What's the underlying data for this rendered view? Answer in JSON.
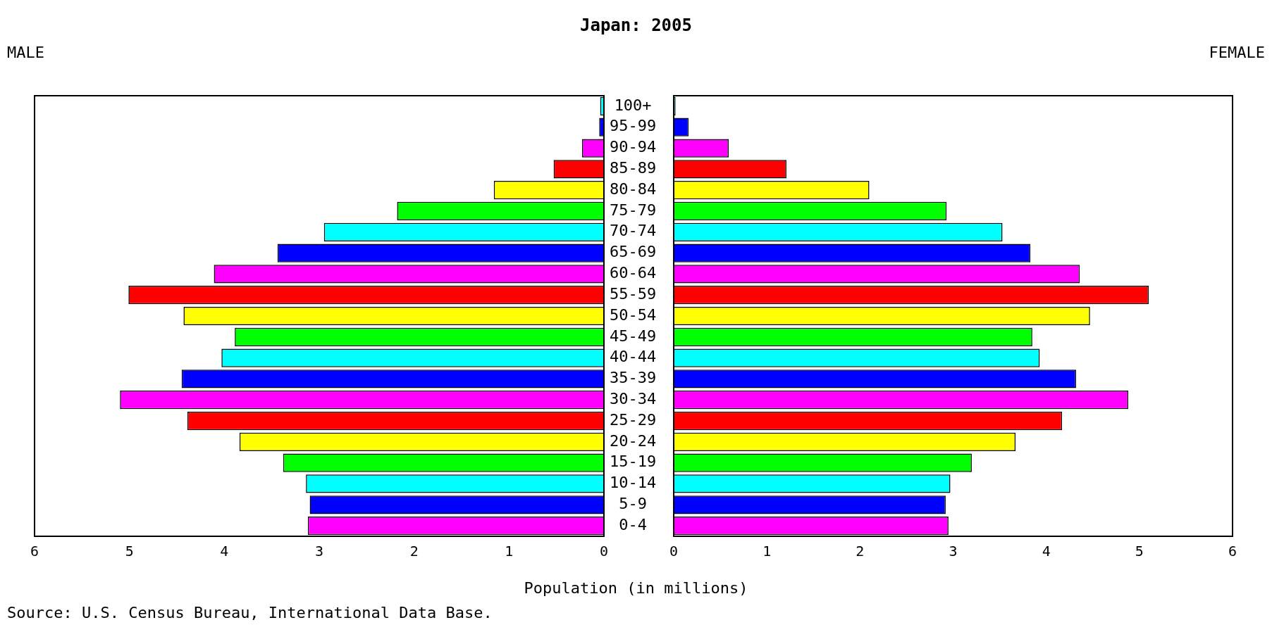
{
  "chart_data": [
    {
      "type": "bar",
      "orientation": "horizontal",
      "title": "Japan: 2005",
      "subtitle": "MALE",
      "xlabel": "Population (in millions)",
      "annotations": [
        "Source: U.S. Census Bureau, International Data Base."
      ],
      "categories": [
        "100+",
        "95-99",
        "90-94",
        "85-89",
        "80-84",
        "75-79",
        "70-74",
        "65-69",
        "60-64",
        "55-59",
        "50-54",
        "45-49",
        "40-44",
        "35-39",
        "30-34",
        "25-29",
        "20-24",
        "15-19",
        "10-14",
        "5-9",
        "0-4"
      ],
      "values": [
        0.04,
        0.05,
        0.23,
        0.53,
        1.16,
        2.18,
        2.95,
        3.44,
        4.11,
        5.01,
        4.43,
        3.89,
        4.03,
        4.45,
        5.1,
        4.39,
        3.84,
        3.38,
        3.14,
        3.1,
        3.12
      ],
      "colors": [
        "#00ffff",
        "#0000ff",
        "#ff00ff",
        "#ff0000",
        "#ffff00",
        "#00ff00",
        "#00ffff",
        "#0000ff",
        "#ff00ff",
        "#ff0000",
        "#ffff00",
        "#00ff00",
        "#00ffff",
        "#0000ff",
        "#ff00ff",
        "#ff0000",
        "#ffff00",
        "#00ff00",
        "#00ffff",
        "#0000ff",
        "#ff00ff"
      ],
      "xlim": [
        6,
        0
      ],
      "xticks": [
        6,
        5,
        4,
        3,
        2,
        1,
        0
      ]
    },
    {
      "type": "bar",
      "orientation": "horizontal",
      "subtitle": "FEMALE",
      "tick_labels": "x",
      "values": [
        0.02,
        0.16,
        0.59,
        1.21,
        2.1,
        2.93,
        3.53,
        3.83,
        4.36,
        5.1,
        4.47,
        3.85,
        3.93,
        4.32,
        4.88,
        4.17,
        3.67,
        3.2,
        2.97,
        2.92,
        2.95
      ],
      "colors": [
        "#00ffff",
        "#0000ff",
        "#ff00ff",
        "#ff0000",
        "#ffff00",
        "#00ff00",
        "#00ffff",
        "#0000ff",
        "#ff00ff",
        "#ff0000",
        "#ffff00",
        "#00ff00",
        "#00ffff",
        "#0000ff",
        "#ff00ff",
        "#ff0000",
        "#ffff00",
        "#00ff00",
        "#00ffff",
        "#0000ff",
        "#ff00ff"
      ],
      "xlim": [
        0,
        6
      ],
      "xticks": [
        0,
        1,
        2,
        3,
        4,
        5,
        6
      ]
    }
  ]
}
